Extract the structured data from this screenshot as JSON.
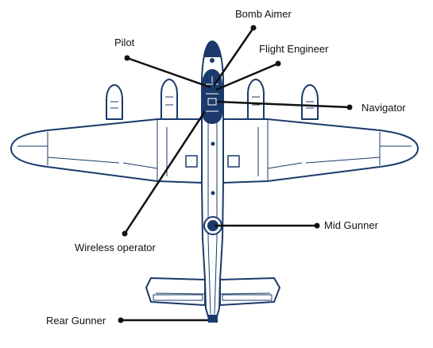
{
  "colors": {
    "outline": "#1b3a6b",
    "fill": "#ffffff",
    "crew": "#1b3a6b",
    "leader": "#111111"
  },
  "labels": {
    "bomb_aimer": "Bomb Aimer",
    "pilot": "Pilot",
    "flight_engineer": "Flight Engineer",
    "navigator": "Navigator",
    "wireless_operator": "Wireless operator",
    "mid_gunner": "Mid Gunner",
    "rear_gunner": "Rear Gunner"
  }
}
